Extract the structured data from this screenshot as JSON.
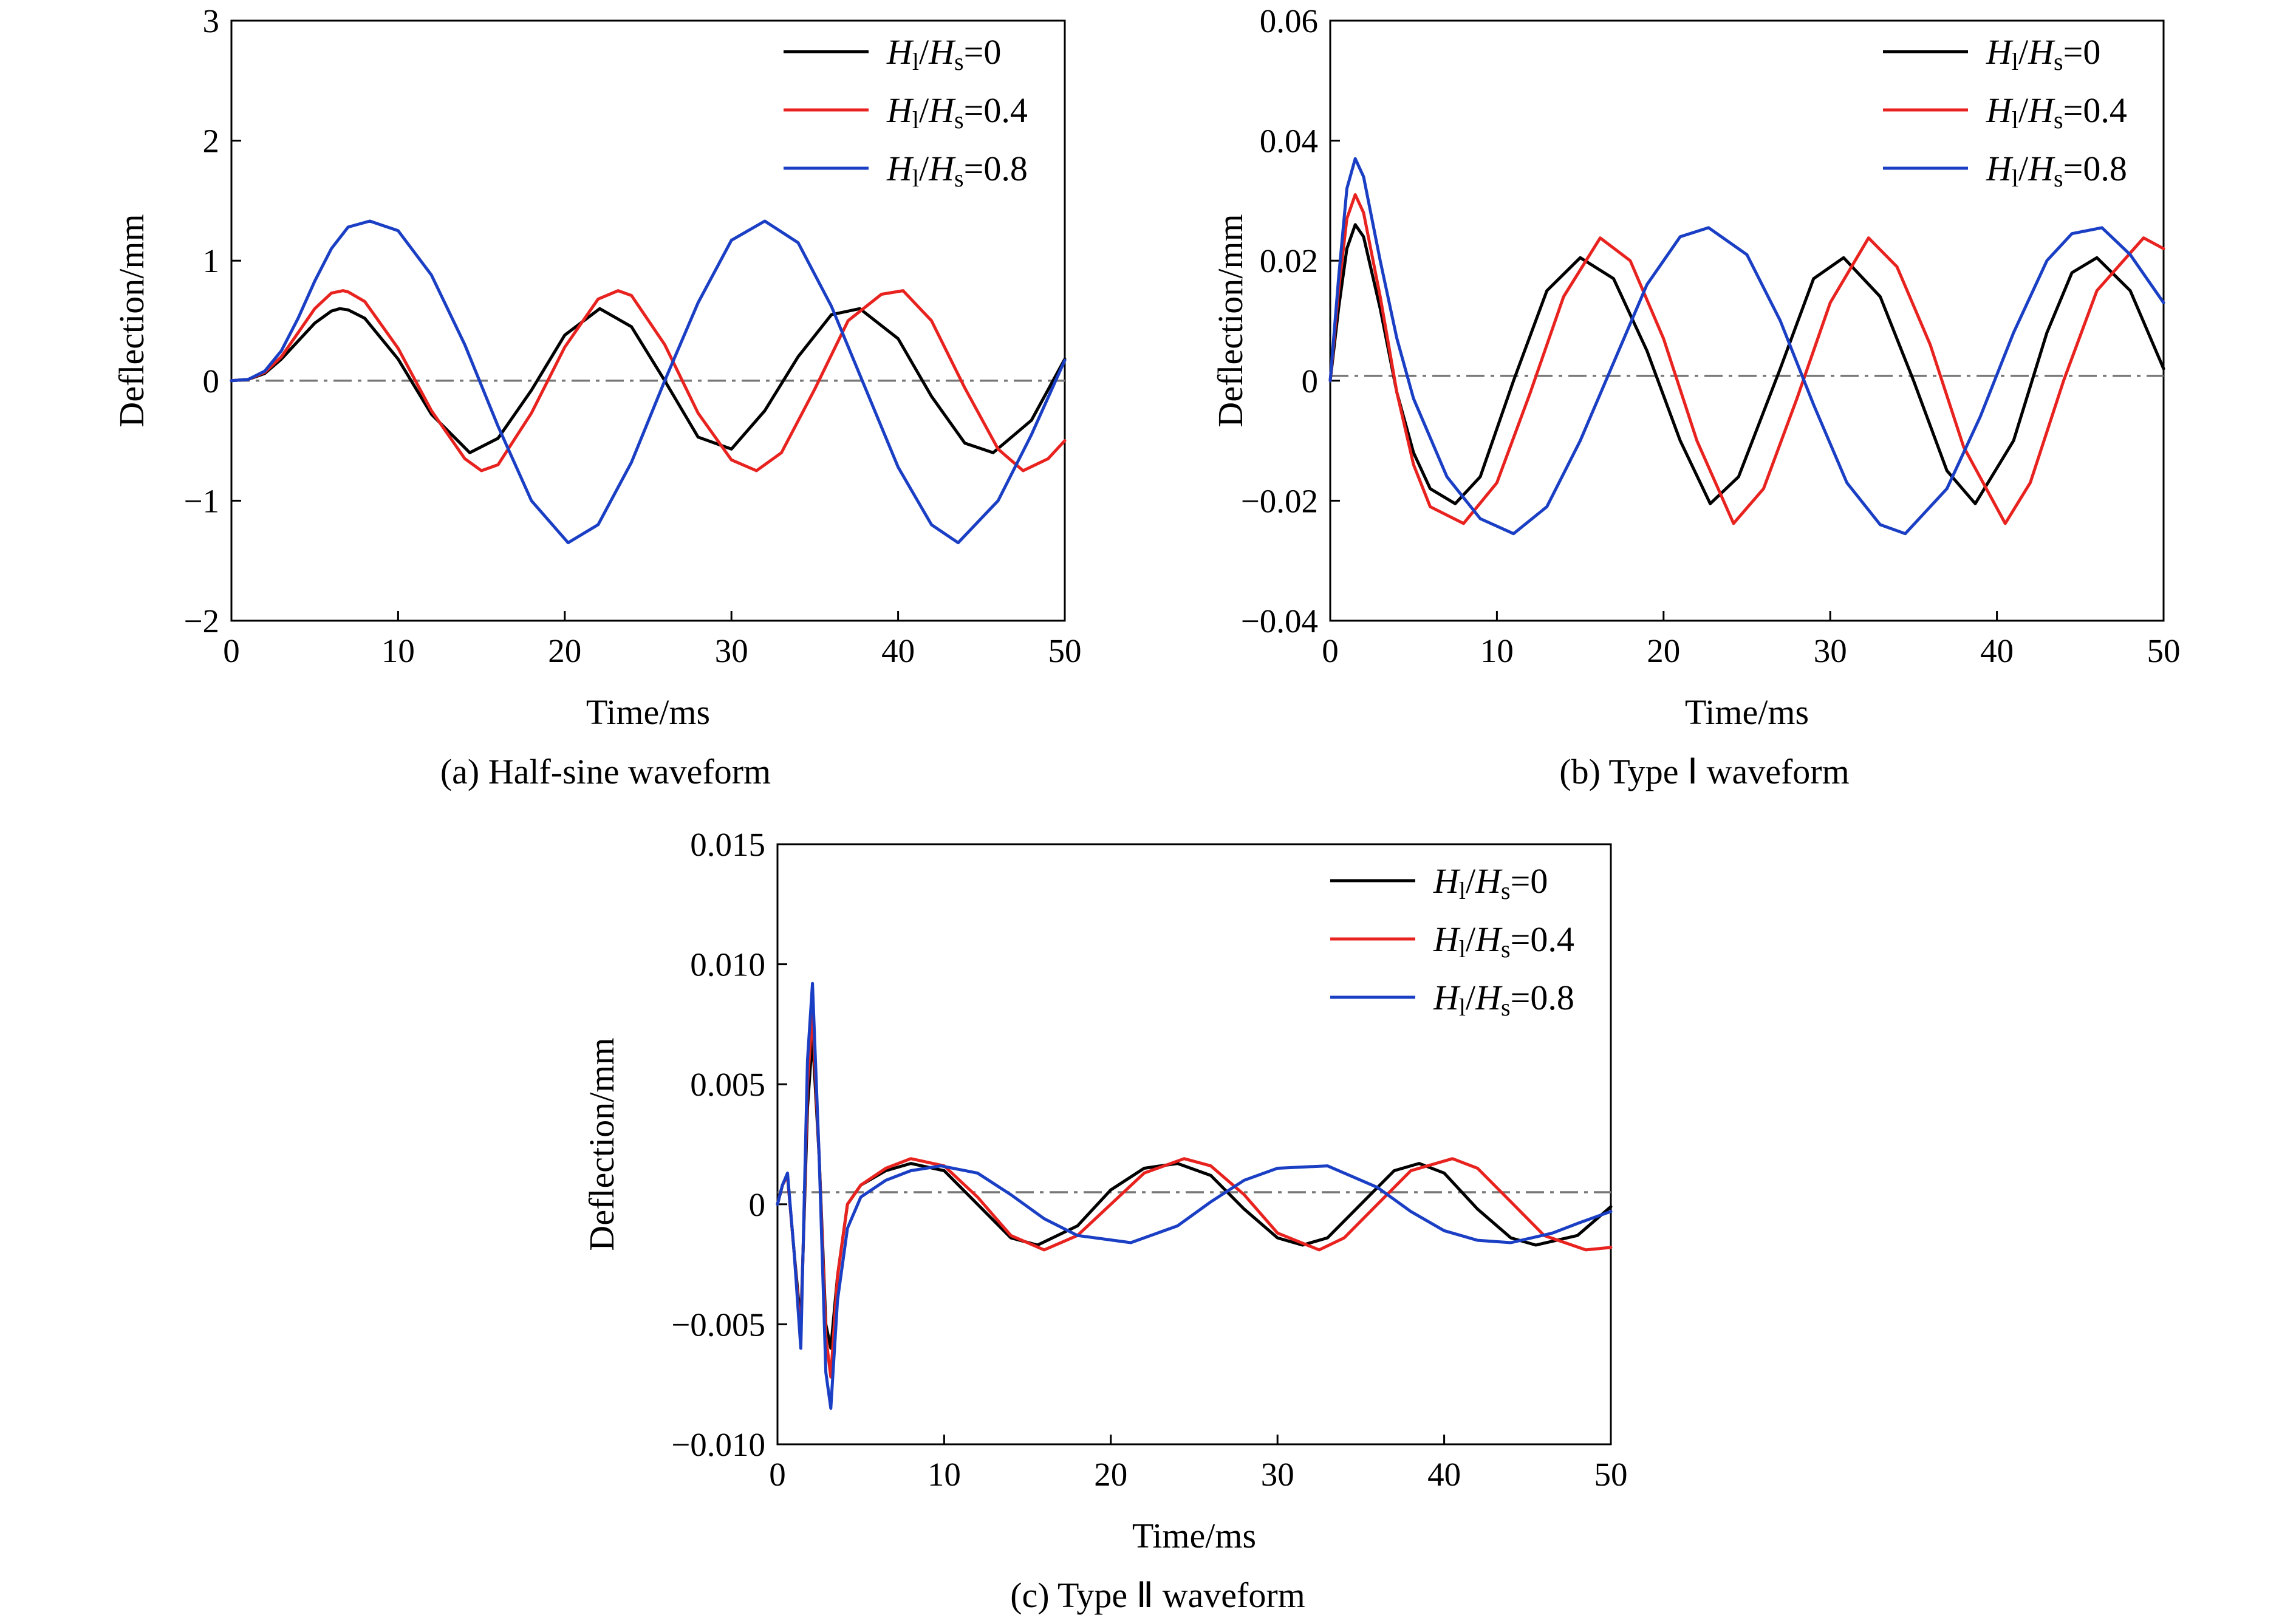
{
  "chart_data": [
    {
      "type": "line",
      "caption": "(a) Half-sine waveform",
      "xlabel": "Time/ms",
      "ylabel": "Deflection/mm",
      "xlim": [
        0,
        50
      ],
      "ylim": [
        -2,
        3
      ],
      "xticks": [
        0,
        10,
        20,
        30,
        40,
        50
      ],
      "yticks": [
        -2,
        -1,
        0,
        1,
        2,
        3
      ],
      "ytick_labels": [
        "−2",
        "−1",
        "0",
        "1",
        "2",
        "3"
      ],
      "baseline": 0,
      "legend_position": "top-right",
      "series": [
        {
          "name": "Hl/Hs=0",
          "color": "#000000",
          "x": [
            0,
            1,
            2,
            3,
            4,
            5,
            6,
            6.5,
            7,
            8,
            10,
            12,
            14.3,
            16,
            18,
            20,
            22.1,
            24,
            26,
            28,
            30,
            32,
            34,
            36,
            37.7,
            40,
            42,
            44,
            45.7,
            48,
            50
          ],
          "y": [
            0,
            0.01,
            0.06,
            0.18,
            0.33,
            0.48,
            0.58,
            0.6,
            0.59,
            0.52,
            0.18,
            -0.28,
            -0.6,
            -0.48,
            -0.08,
            0.38,
            0.6,
            0.45,
            0.0,
            -0.47,
            -0.57,
            -0.25,
            0.2,
            0.55,
            0.6,
            0.35,
            -0.13,
            -0.52,
            -0.6,
            -0.33,
            0.18
          ]
        },
        {
          "name": "Hl/Hs=0.4",
          "color": "#e8231f",
          "x": [
            0,
            1,
            2,
            3,
            4,
            5,
            6,
            6.7,
            7,
            8,
            10,
            12,
            14,
            15,
            16,
            18,
            20,
            22,
            23.2,
            24,
            26,
            28,
            30,
            31.5,
            33,
            35,
            37,
            39,
            40.3,
            42,
            44,
            46,
            47.5,
            49,
            50
          ],
          "y": [
            0,
            0.01,
            0.07,
            0.2,
            0.4,
            0.6,
            0.73,
            0.75,
            0.74,
            0.66,
            0.27,
            -0.25,
            -0.65,
            -0.75,
            -0.7,
            -0.27,
            0.28,
            0.68,
            0.75,
            0.71,
            0.3,
            -0.27,
            -0.66,
            -0.75,
            -0.6,
            -0.07,
            0.5,
            0.72,
            0.75,
            0.5,
            -0.06,
            -0.57,
            -0.75,
            -0.65,
            -0.5
          ]
        },
        {
          "name": "Hl/Hs=0.8",
          "color": "#1a3fc4",
          "x": [
            0,
            1,
            2,
            3,
            4,
            5,
            6,
            7,
            8.3,
            10,
            12,
            14,
            16,
            18,
            20.2,
            22,
            24,
            26,
            28,
            30,
            32,
            34,
            36,
            38,
            40,
            42,
            43.6,
            46,
            48,
            50
          ],
          "y": [
            0,
            0.01,
            0.08,
            0.25,
            0.52,
            0.83,
            1.1,
            1.28,
            1.33,
            1.25,
            0.88,
            0.3,
            -0.38,
            -1.0,
            -1.35,
            -1.2,
            -0.68,
            0.0,
            0.65,
            1.17,
            1.33,
            1.15,
            0.62,
            -0.05,
            -0.72,
            -1.2,
            -1.35,
            -1.0,
            -0.45,
            0.17
          ]
        }
      ]
    },
    {
      "type": "line",
      "caption": "(b) Type Ⅰ waveform",
      "xlabel": "Time/ms",
      "ylabel": "Deflection/mm",
      "xlim": [
        0,
        50
      ],
      "ylim": [
        -0.04,
        0.06
      ],
      "xticks": [
        0,
        10,
        20,
        30,
        40,
        50
      ],
      "yticks": [
        -0.04,
        -0.02,
        0,
        0.02,
        0.04,
        0.06
      ],
      "ytick_labels": [
        "−0.04",
        "−0.02",
        "0",
        "0.02",
        "0.04",
        "0.06"
      ],
      "baseline": 0.0008,
      "legend_position": "top-right",
      "series": [
        {
          "name": "Hl/Hs=0",
          "color": "#000000",
          "x": [
            0,
            0.5,
            1,
            1.5,
            2,
            3,
            4,
            5,
            6,
            7.5,
            9,
            11,
            13,
            15,
            17,
            19,
            21,
            22.8,
            24.5,
            27,
            29,
            30.8,
            33,
            35,
            37,
            38.7,
            41,
            43,
            44.5,
            46,
            48,
            50
          ],
          "y": [
            0,
            0.012,
            0.022,
            0.026,
            0.024,
            0.012,
            -0.002,
            -0.012,
            -0.018,
            -0.0205,
            -0.016,
            0.0,
            0.015,
            0.0205,
            0.017,
            0.005,
            -0.01,
            -0.0205,
            -0.016,
            0.002,
            0.017,
            0.0205,
            0.014,
            0.0,
            -0.015,
            -0.0205,
            -0.01,
            0.008,
            0.018,
            0.0205,
            0.015,
            0.002
          ]
        },
        {
          "name": "Hl/Hs=0.4",
          "color": "#e8231f",
          "x": [
            0,
            0.5,
            1,
            1.5,
            2,
            3,
            4,
            5,
            6,
            8,
            10,
            12,
            14,
            16.2,
            18,
            20,
            22,
            24.2,
            26,
            28,
            30,
            32.3,
            34,
            36,
            38,
            40.5,
            42,
            44,
            46,
            48.8,
            50
          ],
          "y": [
            0,
            0.015,
            0.027,
            0.031,
            0.028,
            0.014,
            -0.002,
            -0.014,
            -0.021,
            -0.0238,
            -0.017,
            -0.002,
            0.014,
            0.0238,
            0.02,
            0.007,
            -0.01,
            -0.0238,
            -0.018,
            -0.003,
            0.013,
            0.0238,
            0.019,
            0.006,
            -0.011,
            -0.0238,
            -0.017,
            0.0,
            0.015,
            0.0238,
            0.022
          ]
        },
        {
          "name": "Hl/Hs=0.8",
          "color": "#1a3fc4",
          "x": [
            0,
            0.5,
            1,
            1.5,
            2,
            3,
            4,
            5,
            7,
            9,
            11,
            13,
            15,
            17,
            19,
            21,
            22.7,
            25,
            27,
            29,
            31,
            33,
            34.5,
            37,
            39,
            41,
            43,
            44.5,
            46.3,
            48,
            50
          ],
          "y": [
            0,
            0.017,
            0.032,
            0.037,
            0.034,
            0.02,
            0.007,
            -0.003,
            -0.016,
            -0.023,
            -0.0255,
            -0.021,
            -0.01,
            0.003,
            0.016,
            0.024,
            0.0255,
            0.021,
            0.01,
            -0.004,
            -0.017,
            -0.024,
            -0.0255,
            -0.018,
            -0.006,
            0.008,
            0.02,
            0.0245,
            0.0255,
            0.021,
            0.013
          ]
        }
      ]
    },
    {
      "type": "line",
      "caption": "(c) Type Ⅱ waveform",
      "xlabel": "Time/ms",
      "ylabel": "Deflection/mm",
      "xlim": [
        0,
        50
      ],
      "ylim": [
        -0.01,
        0.015
      ],
      "xticks": [
        0,
        10,
        20,
        30,
        40,
        50
      ],
      "yticks": [
        -0.01,
        -0.005,
        0,
        0.005,
        0.01,
        0.015
      ],
      "ytick_labels": [
        "−0.010",
        "−0.005",
        "0",
        "0.005",
        "0.010",
        "0.015"
      ],
      "baseline": 0.0005,
      "legend_position": "top-right",
      "series": [
        {
          "name": "Hl/Hs=0",
          "color": "#000000",
          "x": [
            0,
            0.3,
            0.6,
            1.0,
            1.4,
            1.8,
            2.1,
            2.5,
            2.9,
            3.2,
            3.6,
            4.2,
            5,
            6.5,
            8,
            10,
            12,
            14,
            15.6,
            18,
            20,
            22,
            24,
            26,
            28,
            30,
            31.5,
            33,
            35,
            37,
            38.5,
            40,
            42,
            44,
            45.5,
            48,
            50
          ],
          "y": [
            0,
            0.0008,
            0.0012,
            -0.002,
            -0.005,
            0.004,
            0.007,
            0.002,
            -0.005,
            -0.006,
            -0.003,
            0.0,
            0.0008,
            0.0014,
            0.0017,
            0.0014,
            0.0,
            -0.0014,
            -0.0017,
            -0.0009,
            0.0006,
            0.0015,
            0.0017,
            0.0012,
            -0.0002,
            -0.0014,
            -0.0017,
            -0.0014,
            0.0,
            0.0014,
            0.0017,
            0.0013,
            -0.0002,
            -0.0014,
            -0.0017,
            -0.0013,
            -0.0001
          ]
        },
        {
          "name": "Hl/Hs=0.4",
          "color": "#e8231f",
          "x": [
            0,
            0.3,
            0.6,
            1.0,
            1.4,
            1.8,
            2.1,
            2.5,
            2.9,
            3.2,
            3.6,
            4.2,
            5,
            6.5,
            8,
            10,
            12,
            14,
            16,
            18,
            20,
            22,
            24.4,
            26,
            28,
            30,
            32.5,
            34,
            36,
            38,
            40.5,
            42,
            44,
            46,
            48.5,
            50
          ],
          "y": [
            0,
            0.0008,
            0.0012,
            -0.002,
            -0.0055,
            0.005,
            0.008,
            0.002,
            -0.0055,
            -0.0072,
            -0.003,
            0.0,
            0.0008,
            0.0015,
            0.0019,
            0.0016,
            0.0003,
            -0.0013,
            -0.0019,
            -0.0013,
            0.0,
            0.0013,
            0.0019,
            0.0016,
            0.0004,
            -0.0012,
            -0.0019,
            -0.0014,
            0.0,
            0.0014,
            0.0019,
            0.0015,
            0.0001,
            -0.0013,
            -0.0019,
            -0.0018
          ]
        },
        {
          "name": "Hl/Hs=0.8",
          "color": "#1a3fc4",
          "x": [
            0,
            0.3,
            0.6,
            1.0,
            1.4,
            1.8,
            2.1,
            2.5,
            2.9,
            3.2,
            3.6,
            4.2,
            5,
            6.5,
            8,
            9.8,
            12,
            14,
            16,
            18,
            21.2,
            24,
            26,
            28,
            30,
            33,
            36,
            38,
            40,
            42,
            44,
            46.5,
            48,
            50
          ],
          "y": [
            0,
            0.0008,
            0.0013,
            -0.002,
            -0.006,
            0.006,
            0.0092,
            0.002,
            -0.007,
            -0.0085,
            -0.004,
            -0.001,
            0.0003,
            0.001,
            0.0014,
            0.0016,
            0.0013,
            0.0004,
            -0.0006,
            -0.0013,
            -0.0016,
            -0.0009,
            0.0001,
            0.001,
            0.0015,
            0.0016,
            0.0007,
            -0.0003,
            -0.0011,
            -0.0015,
            -0.0016,
            -0.0012,
            -0.0008,
            -0.0003
          ]
        }
      ]
    }
  ]
}
